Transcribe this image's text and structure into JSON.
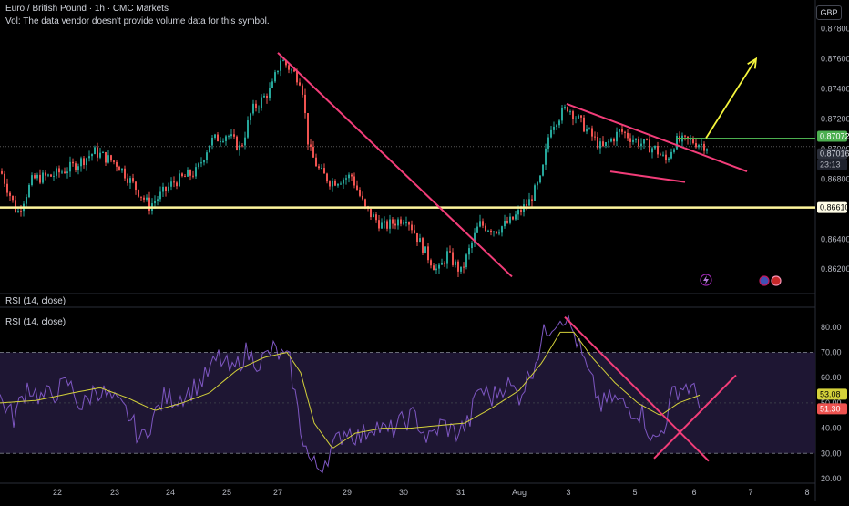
{
  "header": {
    "title": "Euro / British Pound · 1h · CMC Markets",
    "volume_note": "Vol: The data vendor doesn't provide volume data for this symbol.",
    "currency": "GBP"
  },
  "rsi_labels": {
    "pane_label_1": "RSI (14, close)",
    "pane_label_2": "RSI (14, close)"
  },
  "price_axis": {
    "ticks": [
      "0.87800",
      "0.87600",
      "0.87400",
      "0.87200",
      "0.87000",
      "0.86800",
      "0.86400",
      "0.86200"
    ],
    "last_price": "0.87072",
    "current_price": "0.87016",
    "countdown": "23:13",
    "level": "0.86610"
  },
  "rsi_axis": {
    "ticks": [
      "80.00",
      "70.00",
      "60.00",
      "50.00",
      "40.00",
      "30.00",
      "20.00"
    ],
    "rsi_value": "51.30",
    "ma_value": "53.08"
  },
  "time_axis": {
    "ticks": [
      "22",
      "23",
      "24",
      "25",
      "27",
      "29",
      "30",
      "31",
      "Aug",
      "3",
      "5",
      "6",
      "7",
      "8"
    ]
  },
  "colors": {
    "up": "#26a69a",
    "down": "#ef5350",
    "trendline": "#f23d79",
    "support": "#fff59d",
    "arrow": "#f5f53d",
    "resistance_green": "#4caf50",
    "rsi_line": "#7e57c2",
    "rsi_ma": "#d4d13a",
    "rsi_band": "#1e1633"
  },
  "chart_data": [
    {
      "type": "candlestick",
      "title": "Euro / British Pound · 1h · CMC Markets",
      "ylim": [
        0.8608,
        0.879
      ],
      "anchors": [
        [
          0,
          0.8685
        ],
        [
          18,
          0.8657
        ],
        [
          35,
          0.868
        ],
        [
          55,
          0.8682
        ],
        [
          78,
          0.8688
        ],
        [
          103,
          0.8698
        ],
        [
          128,
          0.869
        ],
        [
          163,
          0.8662
        ],
        [
          190,
          0.8678
        ],
        [
          215,
          0.8685
        ],
        [
          230,
          0.8705
        ],
        [
          248,
          0.871
        ],
        [
          263,
          0.87
        ],
        [
          275,
          0.8725
        ],
        [
          297,
          0.874
        ],
        [
          307,
          0.876
        ],
        [
          330,
          0.8745
        ],
        [
          338,
          0.87
        ],
        [
          350,
          0.8685
        ],
        [
          362,
          0.8678
        ],
        [
          385,
          0.8682
        ],
        [
          400,
          0.866
        ],
        [
          420,
          0.8648
        ],
        [
          445,
          0.8655
        ],
        [
          465,
          0.8632
        ],
        [
          480,
          0.8618
        ],
        [
          490,
          0.863
        ],
        [
          505,
          0.8618
        ],
        [
          525,
          0.865
        ],
        [
          543,
          0.8646
        ],
        [
          560,
          0.8652
        ],
        [
          580,
          0.8665
        ],
        [
          593,
          0.868
        ],
        [
          603,
          0.8715
        ],
        [
          622,
          0.8728
        ],
        [
          640,
          0.8715
        ],
        [
          660,
          0.87
        ],
        [
          680,
          0.8712
        ],
        [
          698,
          0.8705
        ],
        [
          718,
          0.87
        ],
        [
          730,
          0.8692
        ],
        [
          740,
          0.8705
        ],
        [
          760,
          0.8705
        ],
        [
          775,
          0.8702
        ]
      ],
      "horizontal_levels": [
        0.8661,
        0.87072
      ],
      "trendlines": [
        {
          "from": [
            305,
            0.8764
          ],
          "to": [
            562,
            0.8615
          ]
        },
        {
          "from": [
            622,
            0.873
          ],
          "to": [
            820,
            0.8685
          ]
        },
        {
          "from": [
            670,
            0.8685
          ],
          "to": [
            752,
            0.8678
          ]
        }
      ],
      "forecast_arrow": {
        "from": [
          775,
          0.87072
        ],
        "to": [
          830,
          0.876
        ]
      }
    },
    {
      "type": "line",
      "title": "RSI (14, close)",
      "ylim": [
        20,
        85
      ],
      "bands": [
        30,
        70
      ],
      "rsi_anchors": [
        [
          0,
          52
        ],
        [
          15,
          44
        ],
        [
          30,
          57
        ],
        [
          45,
          52
        ],
        [
          60,
          54
        ],
        [
          75,
          58
        ],
        [
          90,
          48
        ],
        [
          105,
          56
        ],
        [
          120,
          52
        ],
        [
          140,
          46
        ],
        [
          155,
          35
        ],
        [
          165,
          42
        ],
        [
          180,
          52
        ],
        [
          195,
          52
        ],
        [
          210,
          55
        ],
        [
          225,
          60
        ],
        [
          240,
          68
        ],
        [
          255,
          62
        ],
        [
          270,
          70
        ],
        [
          285,
          66
        ],
        [
          300,
          71
        ],
        [
          318,
          66
        ],
        [
          330,
          40
        ],
        [
          340,
          27
        ],
        [
          350,
          24
        ],
        [
          365,
          32
        ],
        [
          380,
          40
        ],
        [
          395,
          36
        ],
        [
          410,
          42
        ],
        [
          425,
          38
        ],
        [
          440,
          42
        ],
        [
          455,
          45
        ],
        [
          470,
          35
        ],
        [
          485,
          42
        ],
        [
          500,
          38
        ],
        [
          515,
          42
        ],
        [
          525,
          56
        ],
        [
          540,
          52
        ],
        [
          555,
          58
        ],
        [
          570,
          53
        ],
        [
          585,
          64
        ],
        [
          598,
          78
        ],
        [
          610,
          83
        ],
        [
          620,
          85
        ],
        [
          632,
          76
        ],
        [
          645,
          62
        ],
        [
          660,
          49
        ],
        [
          672,
          52
        ],
        [
          690,
          48
        ],
        [
          705,
          46
        ],
        [
          718,
          34
        ],
        [
          728,
          40
        ],
        [
          740,
          55
        ],
        [
          755,
          57
        ],
        [
          768,
          51.3
        ]
      ],
      "ma_anchors": [
        [
          0,
          50
        ],
        [
          40,
          51
        ],
        [
          80,
          54
        ],
        [
          110,
          56
        ],
        [
          140,
          52
        ],
        [
          170,
          47
        ],
        [
          200,
          50
        ],
        [
          230,
          54
        ],
        [
          260,
          63
        ],
        [
          290,
          68
        ],
        [
          315,
          70
        ],
        [
          330,
          62
        ],
        [
          345,
          42
        ],
        [
          365,
          32
        ],
        [
          390,
          38
        ],
        [
          420,
          40
        ],
        [
          450,
          40
        ],
        [
          480,
          41
        ],
        [
          510,
          42
        ],
        [
          540,
          48
        ],
        [
          570,
          55
        ],
        [
          595,
          66
        ],
        [
          615,
          78
        ],
        [
          630,
          78
        ],
        [
          650,
          68
        ],
        [
          675,
          58
        ],
        [
          700,
          50
        ],
        [
          725,
          45
        ],
        [
          745,
          50
        ],
        [
          768,
          53.08
        ]
      ],
      "trendlines": [
        {
          "from": [
            620,
            84
          ],
          "to": [
            778,
            27
          ]
        },
        {
          "from": [
            718,
            28
          ],
          "to": [
            808,
            61
          ]
        }
      ]
    }
  ]
}
